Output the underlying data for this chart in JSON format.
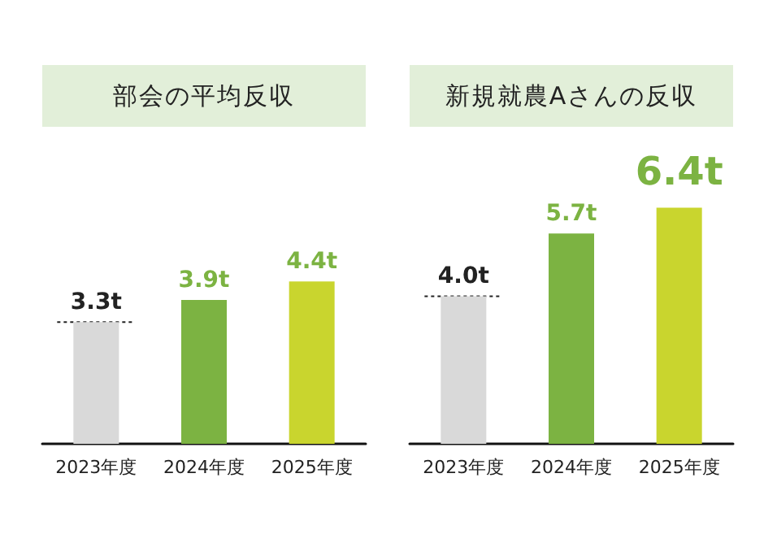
{
  "chart_data": [
    {
      "type": "bar",
      "title": "部会の平均反収",
      "categories": [
        "2023年度",
        "2024年度",
        "2025年度"
      ],
      "values": [
        3.3,
        3.9,
        4.4
      ],
      "colors": [
        "#d9d9d9",
        "#7cb342",
        "#c9d52e"
      ],
      "value_labels": [
        "3.3t",
        "3.9t",
        "4.4t"
      ],
      "tick_labels": "x",
      "grid": false,
      "ref_lines": [
        {
          "axis": "y",
          "value": 3.3,
          "color": "#222222",
          "line_style": "dotted"
        }
      ]
    },
    {
      "type": "bar",
      "title": "新規就農Aさんの反収",
      "categories": [
        "2023年度",
        "2024年度",
        "2025年度"
      ],
      "values": [
        4.0,
        5.7,
        6.4
      ],
      "colors": [
        "#d9d9d9",
        "#7cb342",
        "#c9d52e"
      ],
      "value_labels": [
        "4.0t",
        "5.7t",
        "6.4t"
      ],
      "tick_labels": "x",
      "grid": false,
      "ref_lines": [
        {
          "axis": "y",
          "value": 4.0,
          "color": "#222222",
          "line_style": "dotted"
        }
      ]
    }
  ]
}
